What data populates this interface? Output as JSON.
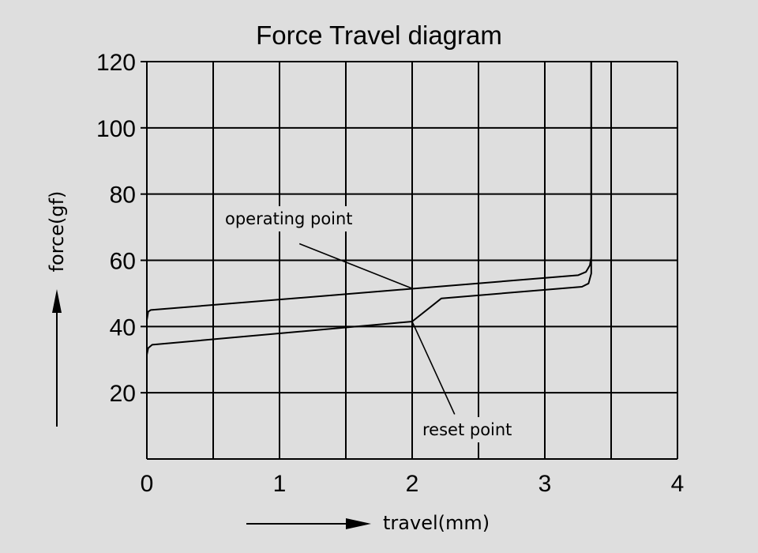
{
  "chart_data": {
    "type": "line",
    "title": "Force Travel diagram",
    "xlabel": "travel(mm)",
    "ylabel": "force(gf)",
    "xlim": [
      0,
      4
    ],
    "ylim": [
      0,
      120
    ],
    "x_ticks": [
      0,
      1,
      2,
      3,
      4
    ],
    "x_tick_labels": [
      "0",
      "1",
      "2",
      "3",
      "4"
    ],
    "y_ticks": [
      20,
      40,
      60,
      80,
      100,
      120
    ],
    "y_tick_labels": [
      "20",
      "40",
      "60",
      "80",
      "100",
      "120"
    ],
    "x_gridlines": [
      0,
      0.5,
      1,
      1.5,
      2,
      2.5,
      3,
      3.5,
      4
    ],
    "y_gridlines": [
      0,
      20,
      40,
      60,
      80,
      100,
      120
    ],
    "grid": true,
    "series": [
      {
        "x": [
          0,
          0.01,
          0.03,
          3.25,
          3.31,
          3.34,
          3.35,
          3.35
        ],
        "y": [
          42,
          44.5,
          45,
          55.5,
          56.5,
          58.5,
          61,
          120
        ]
      },
      {
        "x": [
          0,
          0.01,
          0.04,
          2.0,
          2.22,
          3.28,
          3.33,
          3.35,
          3.35
        ],
        "y": [
          31.5,
          33.5,
          34.5,
          41.5,
          48.5,
          52,
          53,
          56,
          120
        ]
      }
    ],
    "annotations": [
      {
        "text": "operating point",
        "point": [
          2.0,
          51.5
        ],
        "leader_from": [
          1.15,
          65
        ]
      },
      {
        "text": "reset point",
        "point": [
          2.0,
          41.5
        ],
        "leader_from": [
          2.32,
          13.5
        ]
      }
    ]
  }
}
